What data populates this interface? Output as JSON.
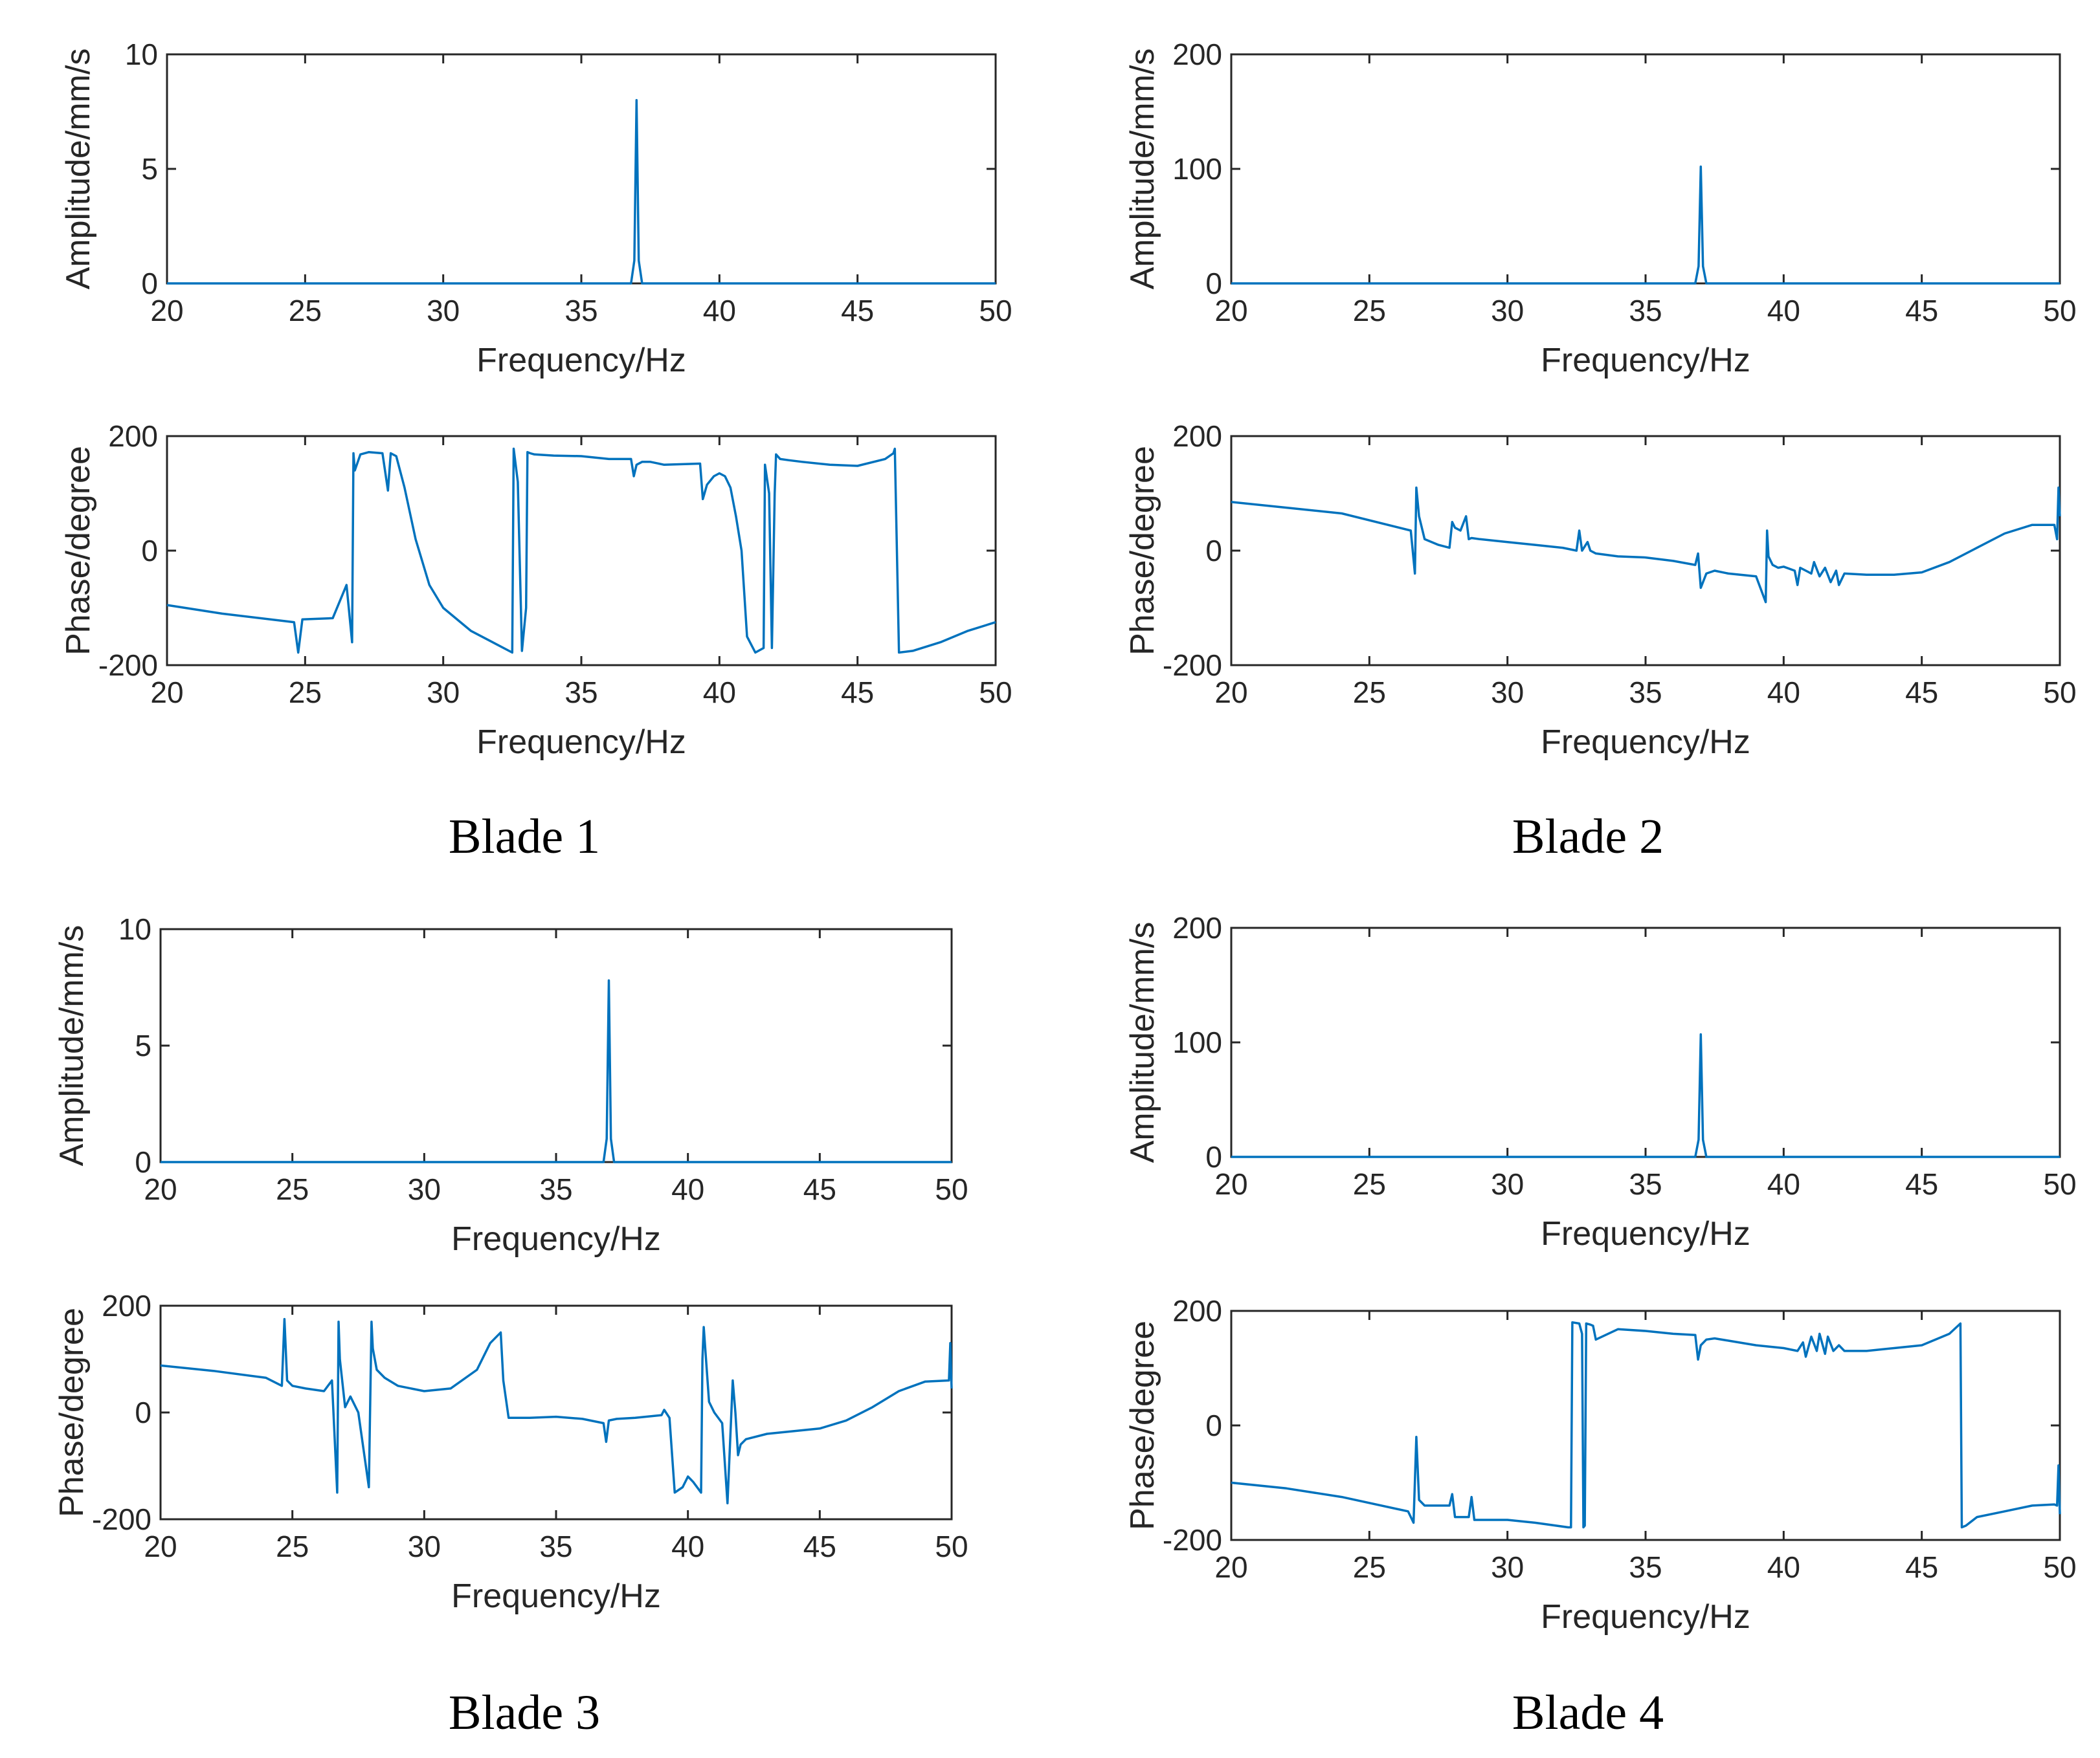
{
  "figure": {
    "captions": [
      "Blade 1",
      "Blade 2",
      "Blade 3",
      "Blade 4"
    ]
  },
  "colors": {
    "series": "#0072BD",
    "axis": "#262626"
  },
  "chart_data": [
    {
      "id": "b1-amp",
      "type": "line",
      "panel": "Blade 1 amplitude",
      "xlabel": "Frequency/Hz",
      "ylabel": "Amplitude/mm/s",
      "xlim": [
        20,
        50
      ],
      "ylim": [
        0,
        10
      ],
      "xticks": [
        20,
        25,
        30,
        35,
        40,
        45,
        50
      ],
      "yticks": [
        0,
        5,
        10
      ],
      "series": [
        {
          "name": "amplitude",
          "x": [
            20,
            36.8,
            36.92,
            37.0,
            37.08,
            37.2,
            50
          ],
          "y": [
            0,
            0,
            1.0,
            8.0,
            1.0,
            0,
            0
          ]
        }
      ]
    },
    {
      "id": "b1-phase",
      "type": "line",
      "panel": "Blade 1 phase",
      "xlabel": "Frequency/Hz",
      "ylabel": "Phase/degree",
      "xlim": [
        20,
        50
      ],
      "ylim": [
        -200,
        200
      ],
      "xticks": [
        20,
        25,
        30,
        35,
        40,
        45,
        50
      ],
      "yticks": [
        -200,
        0,
        200
      ],
      "series": [
        {
          "name": "phase",
          "x": [
            20,
            22,
            24.6,
            24.75,
            24.9,
            26,
            26.5,
            26.7,
            26.75,
            26.8,
            27,
            27.3,
            27.8,
            28,
            28.1,
            28.3,
            28.6,
            29,
            29.5,
            30,
            31,
            32.5,
            32.55,
            32.7,
            32.85,
            33,
            33.05,
            33.15,
            33.3,
            34,
            35,
            36,
            36.8,
            36.9,
            37,
            37.2,
            37.5,
            38,
            39.3,
            39.4,
            39.55,
            39.8,
            40,
            40.2,
            40.4,
            40.6,
            40.8,
            41,
            41.3,
            41.6,
            41.65,
            41.8,
            41.9,
            42,
            42.05,
            42.2,
            42.5,
            43,
            44,
            45,
            46,
            46.3,
            46.35,
            46.5,
            47,
            48,
            49,
            50
          ],
          "y": [
            -95,
            -110,
            -125,
            -178,
            -120,
            -118,
            -60,
            -160,
            170,
            140,
            168,
            172,
            170,
            105,
            170,
            165,
            110,
            20,
            -60,
            -100,
            -140,
            -178,
            178,
            120,
            -175,
            -100,
            172,
            170,
            168,
            166,
            165,
            160,
            160,
            130,
            150,
            155,
            155,
            150,
            152,
            90,
            115,
            130,
            135,
            130,
            110,
            60,
            0,
            -150,
            -178,
            -170,
            150,
            100,
            -170,
            100,
            168,
            160,
            158,
            155,
            150,
            148,
            160,
            170,
            178,
            -178,
            -175,
            -160,
            -140,
            -125
          ]
        }
      ]
    },
    {
      "id": "b2-amp",
      "type": "line",
      "panel": "Blade 2 amplitude",
      "xlabel": "Frequency/Hz",
      "ylabel": "Amplitude/mm/s",
      "xlim": [
        20,
        50
      ],
      "ylim": [
        0,
        200
      ],
      "xticks": [
        20,
        25,
        30,
        35,
        40,
        45,
        50
      ],
      "yticks": [
        0,
        100,
        200
      ],
      "series": [
        {
          "name": "amplitude",
          "x": [
            20,
            36.8,
            36.92,
            37.0,
            37.08,
            37.2,
            50
          ],
          "y": [
            0,
            0,
            15,
            102,
            15,
            0,
            0
          ]
        }
      ]
    },
    {
      "id": "b2-phase",
      "type": "line",
      "panel": "Blade 2 phase",
      "xlabel": "Frequency/Hz",
      "ylabel": "Phase/degree",
      "xlim": [
        20,
        50
      ],
      "ylim": [
        -200,
        200
      ],
      "xticks": [
        20,
        25,
        30,
        35,
        40,
        45,
        50
      ],
      "yticks": [
        -200,
        0,
        200
      ],
      "series": [
        {
          "name": "phase",
          "x": [
            20,
            22,
            24,
            26.5,
            26.65,
            26.7,
            26.8,
            27,
            27.5,
            27.9,
            28,
            28.1,
            28.3,
            28.5,
            28.6,
            28.7,
            29,
            30,
            31,
            32,
            32.5,
            32.6,
            32.7,
            32.9,
            33,
            33.2,
            34,
            35,
            36,
            36.8,
            36.9,
            37,
            37.2,
            37.5,
            38,
            39,
            39.35,
            39.4,
            39.45,
            39.6,
            39.8,
            40,
            40.4,
            40.5,
            40.6,
            41,
            41.1,
            41.3,
            41.5,
            41.7,
            41.9,
            42,
            42.2,
            43,
            44,
            45,
            46,
            47,
            48,
            49,
            49.8,
            49.9,
            49.95,
            50
          ],
          "y": [
            85,
            75,
            65,
            35,
            -40,
            110,
            60,
            20,
            10,
            5,
            50,
            40,
            35,
            60,
            20,
            22,
            20,
            15,
            10,
            5,
            0,
            35,
            0,
            15,
            0,
            -5,
            -10,
            -12,
            -18,
            -25,
            -5,
            -65,
            -40,
            -35,
            -40,
            -45,
            -90,
            35,
            -10,
            -25,
            -30,
            -28,
            -35,
            -60,
            -30,
            -40,
            -20,
            -45,
            -30,
            -55,
            -35,
            -60,
            -40,
            -42,
            -42,
            -38,
            -20,
            5,
            30,
            45,
            45,
            20,
            110,
            60
          ]
        }
      ]
    },
    {
      "id": "b3-amp",
      "type": "line",
      "panel": "Blade 3 amplitude",
      "xlabel": "Frequency/Hz",
      "ylabel": "Amplitude/mm/s",
      "xlim": [
        20,
        50
      ],
      "ylim": [
        0,
        10
      ],
      "xticks": [
        20,
        25,
        30,
        35,
        40,
        45,
        50
      ],
      "yticks": [
        0,
        5,
        10
      ],
      "series": [
        {
          "name": "amplitude",
          "x": [
            20,
            36.8,
            36.92,
            37.0,
            37.08,
            37.2,
            50
          ],
          "y": [
            0,
            0,
            1.0,
            7.8,
            1.0,
            0,
            0
          ]
        }
      ]
    },
    {
      "id": "b3-phase",
      "type": "line",
      "panel": "Blade 3 phase",
      "xlabel": "Frequency/Hz",
      "ylabel": "Phase/degree",
      "xlim": [
        20,
        50
      ],
      "ylim": [
        -200,
        200
      ],
      "xticks": [
        20,
        25,
        30,
        35,
        40,
        45,
        50
      ],
      "yticks": [
        -200,
        0,
        200
      ],
      "series": [
        {
          "name": "phase",
          "x": [
            20,
            22,
            24,
            24.6,
            24.7,
            24.8,
            25,
            25.5,
            26.2,
            26.5,
            26.7,
            26.75,
            26.8,
            27,
            27.2,
            27.5,
            27.9,
            28,
            28.05,
            28.2,
            28.5,
            29,
            30,
            31,
            32,
            32.5,
            32.9,
            33,
            33.2,
            34,
            35,
            36,
            36.8,
            36.9,
            37,
            37.3,
            38,
            39,
            39.1,
            39.3,
            39.5,
            39.8,
            40,
            40.2,
            40.5,
            40.55,
            40.6,
            40.8,
            41,
            41.3,
            41.5,
            41.7,
            41.8,
            41.9,
            42,
            42.2,
            43,
            44,
            45,
            46,
            47,
            48,
            49,
            49.9,
            49.95,
            50
          ],
          "y": [
            88,
            78,
            65,
            50,
            175,
            60,
            50,
            45,
            40,
            60,
            -150,
            170,
            100,
            10,
            30,
            0,
            -140,
            170,
            120,
            80,
            65,
            50,
            40,
            45,
            80,
            130,
            150,
            60,
            -10,
            -10,
            -8,
            -12,
            -20,
            -55,
            -15,
            -12,
            -10,
            -5,
            5,
            -10,
            -150,
            -140,
            -120,
            -130,
            -150,
            100,
            160,
            20,
            0,
            -20,
            -170,
            60,
            0,
            -80,
            -60,
            -50,
            -40,
            -35,
            -30,
            -15,
            10,
            40,
            58,
            60,
            130,
            45
          ]
        }
      ]
    },
    {
      "id": "b4-amp",
      "type": "line",
      "panel": "Blade 4 amplitude",
      "xlabel": "Frequency/Hz",
      "ylabel": "Amplitude/mm/s",
      "xlim": [
        20,
        50
      ],
      "ylim": [
        0,
        200
      ],
      "xticks": [
        20,
        25,
        30,
        35,
        40,
        45,
        50
      ],
      "yticks": [
        0,
        100,
        200
      ],
      "series": [
        {
          "name": "amplitude",
          "x": [
            20,
            36.8,
            36.92,
            37.0,
            37.08,
            37.2,
            50
          ],
          "y": [
            0,
            0,
            15,
            107,
            15,
            0,
            0
          ]
        }
      ]
    },
    {
      "id": "b4-phase",
      "type": "line",
      "panel": "Blade 4 phase",
      "xlabel": "Frequency/Hz",
      "ylabel": "Phase/degree",
      "xlim": [
        20,
        50
      ],
      "ylim": [
        -200,
        200
      ],
      "xticks": [
        20,
        25,
        30,
        35,
        40,
        45,
        50
      ],
      "yticks": [
        -200,
        0,
        200
      ],
      "series": [
        {
          "name": "phase",
          "x": [
            20,
            22,
            24,
            26.4,
            26.6,
            26.7,
            26.8,
            27,
            27.9,
            28,
            28.1,
            28.6,
            28.7,
            28.8,
            30,
            31,
            32.2,
            32.3,
            32.35,
            32.6,
            32.7,
            32.75,
            32.8,
            32.85,
            33,
            33.1,
            33.2,
            34,
            35,
            36,
            36.8,
            36.9,
            37,
            37.2,
            37.5,
            38,
            39,
            40,
            40.5,
            40.7,
            40.8,
            41,
            41.2,
            41.3,
            41.5,
            41.6,
            41.8,
            42,
            42.2,
            43,
            44,
            45,
            46,
            46.4,
            46.45,
            46.6,
            47,
            48,
            49,
            49.8,
            49.9,
            49.95,
            50
          ],
          "y": [
            -100,
            -110,
            -125,
            -150,
            -170,
            -20,
            -130,
            -140,
            -140,
            -120,
            -160,
            -160,
            -125,
            -165,
            -165,
            -170,
            -178,
            -178,
            180,
            178,
            160,
            -178,
            -175,
            178,
            176,
            174,
            150,
            168,
            165,
            160,
            158,
            115,
            140,
            150,
            152,
            148,
            140,
            135,
            130,
            145,
            120,
            155,
            130,
            160,
            125,
            155,
            130,
            140,
            130,
            130,
            135,
            140,
            160,
            178,
            -178,
            -175,
            -160,
            -150,
            -140,
            -138,
            -140,
            -70,
            -155
          ]
        }
      ]
    }
  ]
}
